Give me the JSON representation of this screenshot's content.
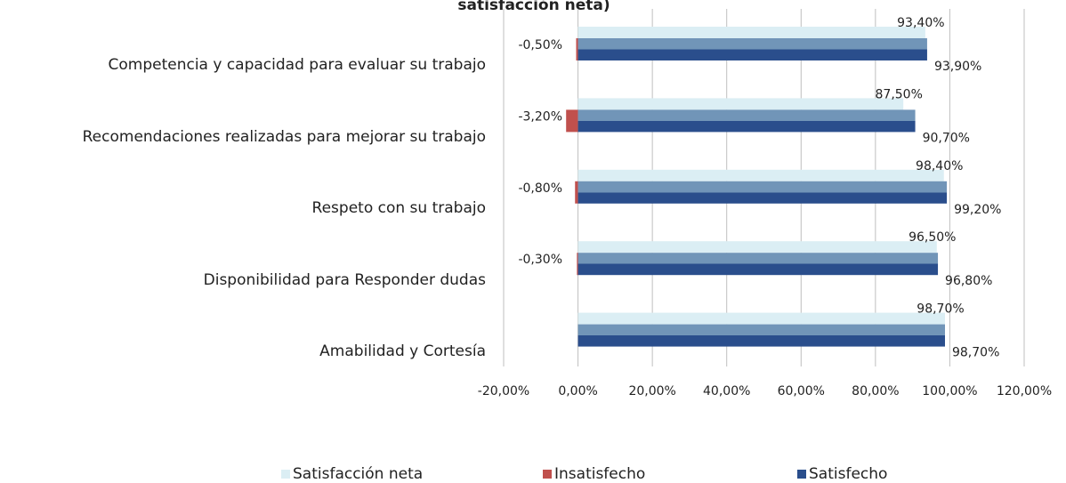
{
  "chart_data": {
    "type": "hbar",
    "title": "satisfacción neta)",
    "categories": [
      "Competencia y capacidad para evaluar su trabajo",
      "Recomendaciones realizadas para mejorar su trabajo",
      "Respeto con su trabajo",
      "Disponibilidad para Responder dudas",
      "Amabilidad y Cortesía"
    ],
    "series": [
      {
        "name": "Satisfacción neta",
        "color": "#dbeef4",
        "values": [
          93.4,
          87.5,
          98.4,
          96.5,
          98.7
        ],
        "value_labels": [
          "93,40%",
          "87,50%",
          "98,40%",
          "96,50%",
          "98,70%"
        ]
      },
      {
        "name": "Insatisfecho",
        "color": "#c0504d",
        "values": [
          -0.5,
          -3.2,
          -0.8,
          -0.3,
          null
        ],
        "value_labels": [
          "-0,50%",
          "-3,20%",
          "-0,80%",
          "-0,30%",
          null
        ]
      },
      {
        "name": "Satisfecho",
        "color": "#2a4e8c",
        "values": [
          93.9,
          90.7,
          99.2,
          96.8,
          98.7
        ],
        "value_labels": [
          "93,90%",
          "90,70%",
          "99,20%",
          "96,80%",
          "98,70%"
        ]
      }
    ],
    "xlim": [
      -20,
      120
    ],
    "xticks": [
      {
        "value": -20,
        "label": "-20,00%"
      },
      {
        "value": 0,
        "label": "0,00%"
      },
      {
        "value": 20,
        "label": "20,00%"
      },
      {
        "value": 40,
        "label": "40,00%"
      },
      {
        "value": 60,
        "label": "60,00%"
      },
      {
        "value": 80,
        "label": "80,00%"
      },
      {
        "value": 100,
        "label": "100,00%"
      },
      {
        "value": 120,
        "label": "120,00%"
      }
    ],
    "grid": true,
    "legend": "bottom"
  }
}
